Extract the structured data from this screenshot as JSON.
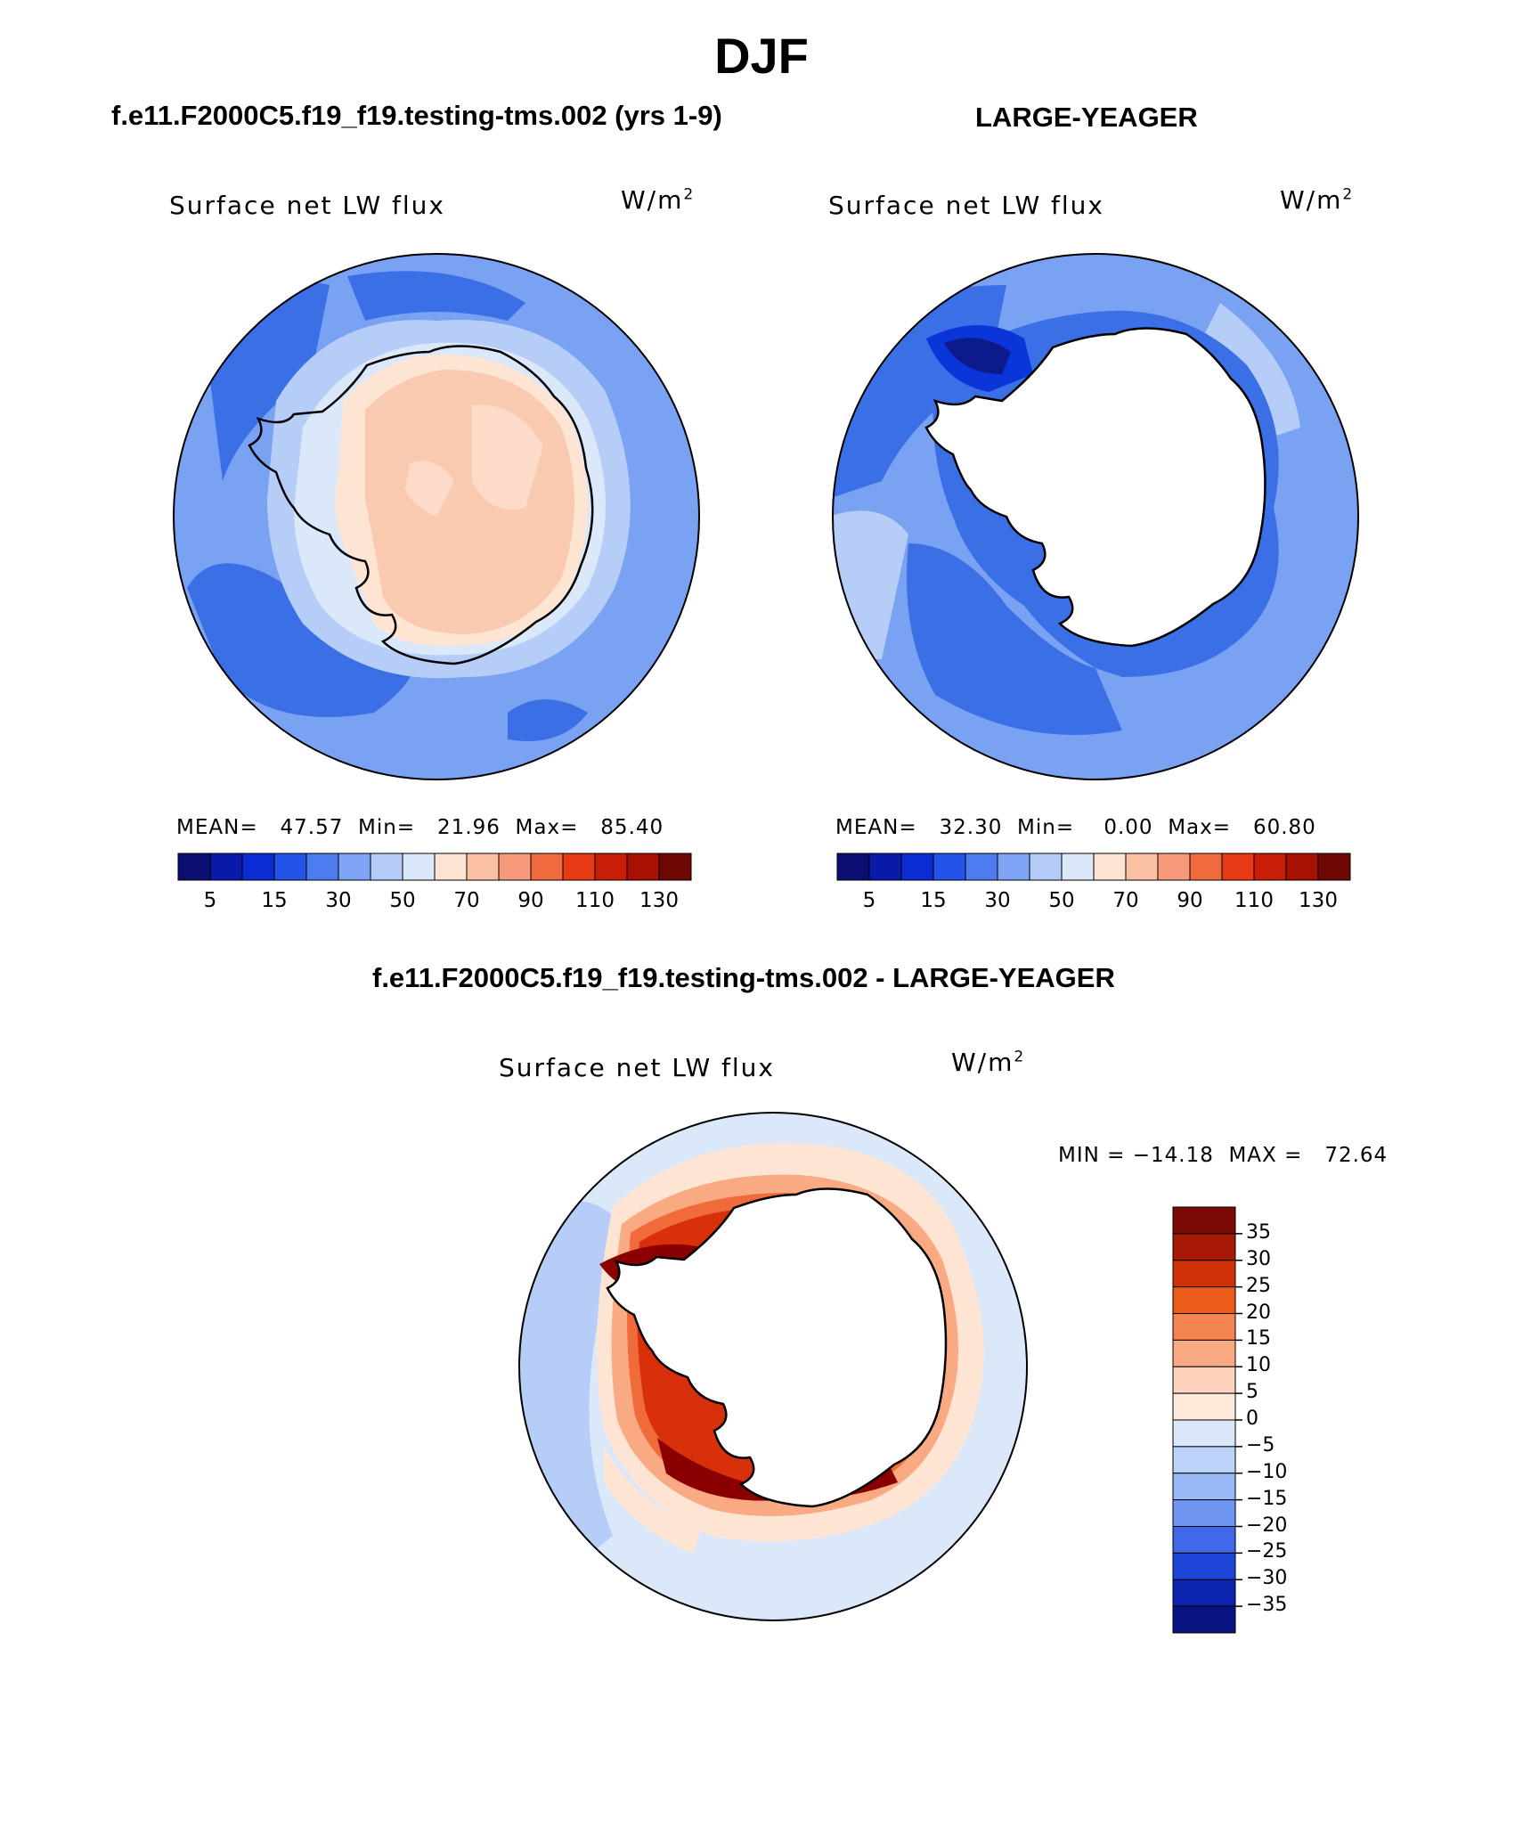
{
  "figure": {
    "season": "DJF",
    "unit_base": "W/m",
    "unit_exp": "2",
    "variable": "Surface net LW flux"
  },
  "panels": [
    {
      "title": "f.e11.F2000C5.f19_f19.testing-tms.002 (yrs 1-9)",
      "stats": {
        "mean_label": "MEAN=",
        "mean": "47.57",
        "min_label": "Min=",
        "min": "21.96",
        "max_label": "Max=",
        "max": "85.40"
      }
    },
    {
      "title": "LARGE-YEAGER",
      "stats": {
        "mean_label": "MEAN=",
        "mean": "32.30",
        "min_label": "Min=",
        "min": "0.00",
        "max_label": "Max=",
        "max": "60.80"
      }
    }
  ],
  "difference": {
    "title": "f.e11.F2000C5.f19_f19.testing-tms.002 - LARGE-YEAGER",
    "stats": "MIN = −14.18  MAX =   72.64"
  },
  "colorbar_abs": {
    "colors": [
      "#0c0f72",
      "#0a1aa8",
      "#0b2cd2",
      "#2453ea",
      "#4d7cf0",
      "#7fa3f5",
      "#b4cbf8",
      "#dbe8fa",
      "#fde4d3",
      "#fac0a3",
      "#f69a7a",
      "#f06a40",
      "#e83a14",
      "#c91e06",
      "#a81102",
      "#6f0702"
    ],
    "ticks": [
      "5",
      "15",
      "30",
      "50",
      "70",
      "90",
      "110",
      "130"
    ]
  },
  "colorbar_diff": {
    "colors": [
      "#7a0a06",
      "#a81a06",
      "#d13308",
      "#ec5a1c",
      "#f58451",
      "#f9aa82",
      "#fcd3bc",
      "#fde8da",
      "#dbe8fa",
      "#bcd3f9",
      "#98b8f6",
      "#6f96f2",
      "#3f68ea",
      "#1f45d8",
      "#0a24b0",
      "#081580"
    ],
    "ticks": [
      "35",
      "30",
      "25",
      "20",
      "15",
      "10",
      "5",
      "0",
      "−5",
      "−10",
      "−15",
      "−20",
      "−25",
      "−30",
      "−35"
    ]
  },
  "maps": {
    "continent": "Antarctica",
    "colors": {
      "deep_blue": "#3b6fe5",
      "mid_blue": "#7aa2f3",
      "light_blue": "#b6cdf8",
      "pale_blue": "#dbe8fa",
      "pale_peach": "#fde4d3",
      "peach": "#f9c9b0",
      "dark_navy": "#0c1a8c",
      "strong_blue": "#0a35d8",
      "dark_red": "#8a0000",
      "red": "#d8300b",
      "orange": "#f06a3a",
      "salmon": "#f7a383"
    }
  }
}
